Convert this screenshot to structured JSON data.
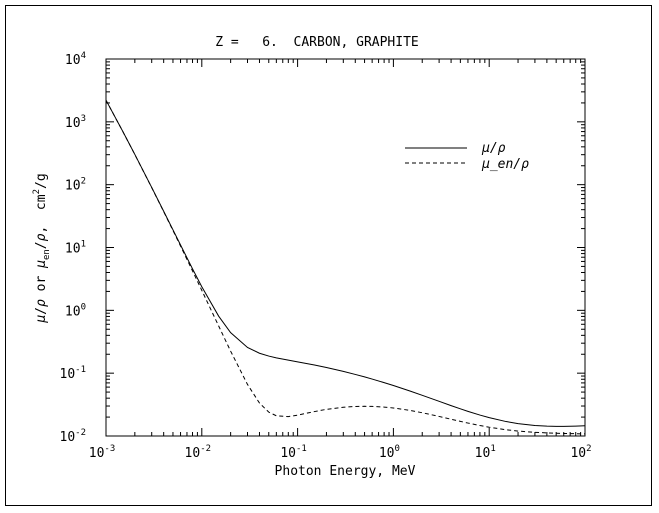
{
  "chart_data": {
    "type": "line",
    "title": "Z =   6.  CARBON, GRAPHITE",
    "xlabel": "Photon Energy, MeV",
    "ylabel_parts": {
      "mu1": "μ",
      "slash1": "/",
      "rho1": "ρ",
      "or": " or ",
      "mu2": "μ",
      "en": "en",
      "slash2": "/",
      "rho2": "ρ",
      "comma": ",  ",
      "cm": "cm",
      "two": "2",
      "g": "/g"
    },
    "x_scale": "log",
    "y_scale": "log",
    "xlim": [
      0.001,
      100
    ],
    "ylim": [
      0.01,
      10000
    ],
    "x_ticks": [
      {
        "base": "10",
        "exp": "-3"
      },
      {
        "base": "10",
        "exp": "-2"
      },
      {
        "base": "10",
        "exp": "-1"
      },
      {
        "base": "10",
        "exp": "0"
      },
      {
        "base": "10",
        "exp": "1"
      },
      {
        "base": "10",
        "exp": "2"
      }
    ],
    "y_ticks": [
      {
        "base": "10",
        "exp": "-2"
      },
      {
        "base": "10",
        "exp": "-1"
      },
      {
        "base": "10",
        "exp": "0"
      },
      {
        "base": "10",
        "exp": "1"
      },
      {
        "base": "10",
        "exp": "2"
      },
      {
        "base": "10",
        "exp": "3"
      },
      {
        "base": "10",
        "exp": "4"
      }
    ],
    "legend_position": "top-right",
    "series": [
      {
        "name": "μ/ρ",
        "style": "solid",
        "color": "#000000",
        "x": [
          0.001,
          0.0015,
          0.002,
          0.003,
          0.004,
          0.005,
          0.006,
          0.008,
          0.01,
          0.015,
          0.02,
          0.03,
          0.04,
          0.05,
          0.06,
          0.08,
          0.1,
          0.15,
          0.2,
          0.3,
          0.4,
          0.5,
          0.6,
          0.8,
          1,
          1.5,
          2,
          3,
          4,
          5,
          6,
          8,
          10,
          15,
          20,
          30,
          40,
          50,
          60,
          80,
          100
        ],
        "values": [
          2211,
          700.2,
          302.6,
          90.33,
          37.78,
          19.12,
          10.95,
          4.576,
          2.373,
          0.8071,
          0.442,
          0.2562,
          0.2076,
          0.1871,
          0.1753,
          0.161,
          0.1514,
          0.1347,
          0.1229,
          0.1066,
          0.09546,
          0.08715,
          0.08058,
          0.07076,
          0.06361,
          0.05179,
          0.04442,
          0.03562,
          0.03047,
          0.02708,
          0.02469,
          0.02154,
          0.01959,
          0.01698,
          0.01575,
          0.01471,
          0.01437,
          0.01426,
          0.01426,
          0.01437,
          0.01454
        ]
      },
      {
        "name": "μ_en/ρ",
        "style": "dashed",
        "color": "#000000",
        "x": [
          0.001,
          0.0015,
          0.002,
          0.003,
          0.004,
          0.005,
          0.006,
          0.008,
          0.01,
          0.015,
          0.02,
          0.03,
          0.04,
          0.05,
          0.06,
          0.08,
          0.1,
          0.15,
          0.2,
          0.3,
          0.4,
          0.5,
          0.6,
          0.8,
          1,
          1.5,
          2,
          3,
          4,
          5,
          6,
          8,
          10,
          15,
          20,
          30,
          40,
          50,
          60,
          80,
          100
        ],
        "values": [
          2209,
          699,
          301.6,
          89.63,
          37.23,
          18.66,
          10.54,
          4.242,
          2.078,
          0.5627,
          0.2238,
          0.06614,
          0.03343,
          0.02397,
          0.02098,
          0.02037,
          0.02147,
          0.02449,
          0.02655,
          0.0287,
          0.0295,
          0.02969,
          0.02956,
          0.02885,
          0.02792,
          0.02551,
          0.02345,
          0.02048,
          0.01849,
          0.0171,
          0.01607,
          0.01468,
          0.0138,
          0.01258,
          0.01198,
          0.01143,
          0.0112,
          0.01106,
          0.01098,
          0.01087,
          0.01079
        ]
      }
    ]
  }
}
